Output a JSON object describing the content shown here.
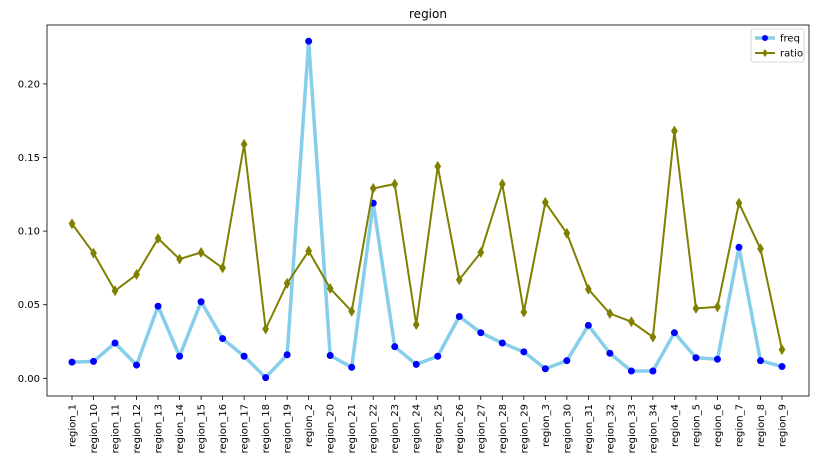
{
  "chart_data": {
    "type": "line",
    "title": "region",
    "xlabel": "",
    "ylabel": "",
    "ylim": [
      -0.012,
      0.24
    ],
    "yticks": [
      0.0,
      0.05,
      0.1,
      0.15,
      0.2
    ],
    "ytick_labels": [
      "0.00",
      "0.05",
      "0.10",
      "0.15",
      "0.20"
    ],
    "grid": false,
    "legend_position": "top-right",
    "categories": [
      "region_1",
      "region_10",
      "region_11",
      "region_12",
      "region_13",
      "region_14",
      "region_15",
      "region_16",
      "region_17",
      "region_18",
      "region_19",
      "region_2",
      "region_20",
      "region_21",
      "region_22",
      "region_23",
      "region_24",
      "region_25",
      "region_26",
      "region_27",
      "region_28",
      "region_29",
      "region_3",
      "region_30",
      "region_31",
      "region_32",
      "region_33",
      "region_34",
      "region_4",
      "region_5",
      "region_6",
      "region_7",
      "region_8",
      "region_9"
    ],
    "series": [
      {
        "name": "freq",
        "color": "#87ceeb",
        "marker_color": "#0000ff",
        "marker": "circle",
        "values": [
          0.011,
          0.0115,
          0.024,
          0.009,
          0.049,
          0.015,
          0.052,
          0.027,
          0.015,
          0.0005,
          0.016,
          0.229,
          0.0155,
          0.0075,
          0.119,
          0.0215,
          0.0095,
          0.015,
          0.042,
          0.031,
          0.024,
          0.018,
          0.0065,
          0.012,
          0.036,
          0.017,
          0.005,
          0.005,
          0.031,
          0.014,
          0.013,
          0.089,
          0.012,
          0.008
        ]
      },
      {
        "name": "ratio",
        "color": "#808000",
        "marker_color": "#808000",
        "marker": "diamond",
        "values": [
          0.105,
          0.085,
          0.0595,
          0.0705,
          0.095,
          0.081,
          0.0855,
          0.075,
          0.159,
          0.0335,
          0.0645,
          0.0865,
          0.061,
          0.0455,
          0.129,
          0.132,
          0.0365,
          0.144,
          0.067,
          0.0855,
          0.132,
          0.045,
          0.1195,
          0.0985,
          0.0605,
          0.044,
          0.0385,
          0.028,
          0.168,
          0.0475,
          0.0485,
          0.119,
          0.088,
          0.0195
        ]
      }
    ]
  }
}
